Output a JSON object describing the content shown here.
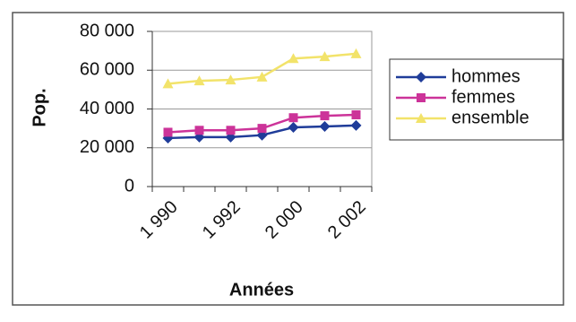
{
  "chart_data": {
    "type": "line",
    "x_label": "Années",
    "y_label": "Pop.",
    "categories": [
      "1 990",
      null,
      "1 992",
      null,
      "2 000",
      null,
      "2 002"
    ],
    "series": [
      {
        "name": "hommes",
        "color": "#1f3c99",
        "marker": "diamond",
        "values": [
          25000,
          25500,
          25500,
          26500,
          30500,
          31000,
          31500
        ]
      },
      {
        "name": "femmes",
        "color": "#cc3399",
        "marker": "square",
        "values": [
          28000,
          29000,
          29000,
          30000,
          35500,
          36500,
          37000
        ]
      },
      {
        "name": "ensemble",
        "color": "#f2e36a",
        "marker": "triangle",
        "values": [
          53000,
          54500,
          55000,
          56500,
          66000,
          67000,
          68500
        ]
      }
    ],
    "ylim": [
      0,
      80000
    ],
    "yticks": [
      0,
      {
        "value": 20000,
        "label": "20 000"
      },
      {
        "value": 40000,
        "label": "40 000"
      },
      {
        "value": 60000,
        "label": "60 000"
      },
      {
        "value": 80000,
        "label": "80 000"
      }
    ],
    "grid": true,
    "legend": "right"
  }
}
